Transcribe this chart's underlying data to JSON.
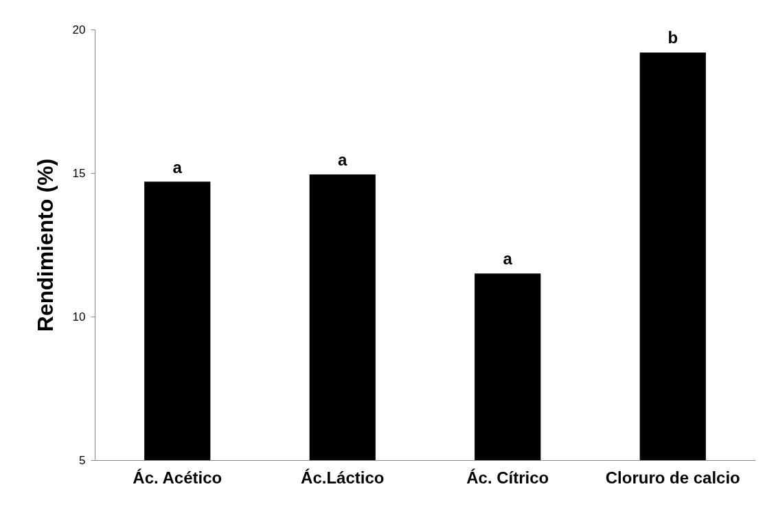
{
  "chart_data": {
    "type": "bar",
    "ylabel": "Rendimiento  (%)",
    "categories": [
      "Ác. Acético",
      "Ác.Láctico",
      "Ác. Cítrico",
      "Cloruro de calcio"
    ],
    "values": [
      14.7,
      14.95,
      11.5,
      19.2
    ],
    "color": "#000000",
    "ylim": [
      5,
      20
    ],
    "yticks": [
      5,
      10,
      15,
      20
    ],
    "grid": false,
    "annotations": [
      {
        "text": "a",
        "x": "Ác. Acético",
        "y": 14.7
      },
      {
        "text": "a",
        "x": "Ác.Láctico",
        "y": 14.95
      },
      {
        "text": "a",
        "x": "Ác. Cítrico",
        "y": 11.5
      },
      {
        "text": "b",
        "x": "Cloruro de calcio",
        "y": 19.2
      }
    ]
  }
}
